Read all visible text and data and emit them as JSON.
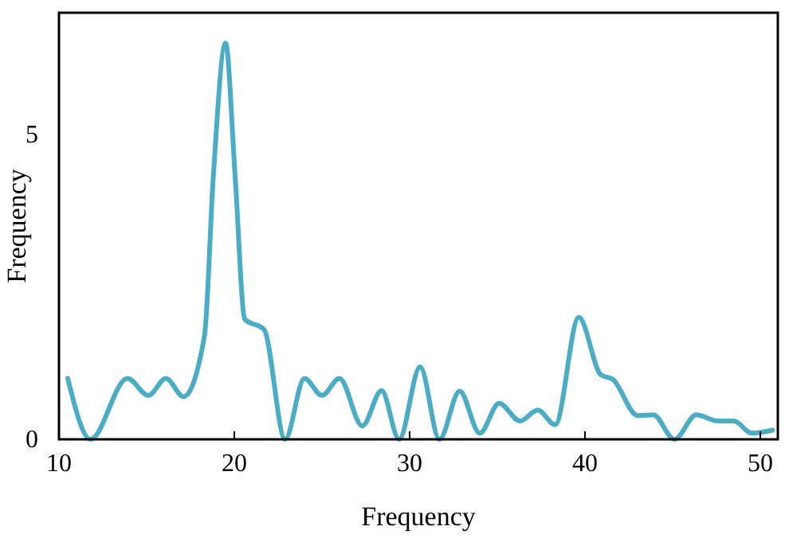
{
  "chart_data": {
    "type": "line",
    "xlabel": "Frequency",
    "ylabel": "Frequency",
    "xlim": [
      10,
      51
    ],
    "ylim": [
      0,
      7
    ],
    "xticks": [
      10,
      20,
      30,
      40,
      50
    ],
    "yticks": [
      0,
      5
    ],
    "grid": false,
    "marker": "none",
    "line_style": "solid",
    "series": [
      {
        "color": "#4bacc6",
        "x": [
          10.5,
          11.8,
          13.9,
          15.1,
          16.1,
          17.1,
          18.3,
          18.8,
          19.5,
          20.05,
          20.6,
          21.7,
          22.9,
          24.0,
          25.0,
          26.0,
          27.3,
          28.4,
          29.4,
          30.6,
          31.7,
          32.85,
          34.0,
          35.1,
          36.3,
          37.3,
          38.3,
          39.65,
          40.9,
          41.6,
          43.0,
          43.9,
          45.1,
          46.35,
          47.6,
          48.5,
          49.5,
          50.7
        ],
        "values": [
          1.0,
          0,
          1.0,
          0.72,
          1.0,
          0.7,
          1.7,
          4.3,
          6.5,
          4.3,
          1.97,
          1.8,
          0,
          1.0,
          0.72,
          1.0,
          0.22,
          0.8,
          0,
          1.19,
          0,
          0.79,
          0.1,
          0.59,
          0.3,
          0.48,
          0.24,
          2.0,
          1.06,
          0.98,
          0.39,
          0.4,
          0,
          0.4,
          0.3,
          0.3,
          0.1,
          0.15
        ]
      }
    ]
  }
}
